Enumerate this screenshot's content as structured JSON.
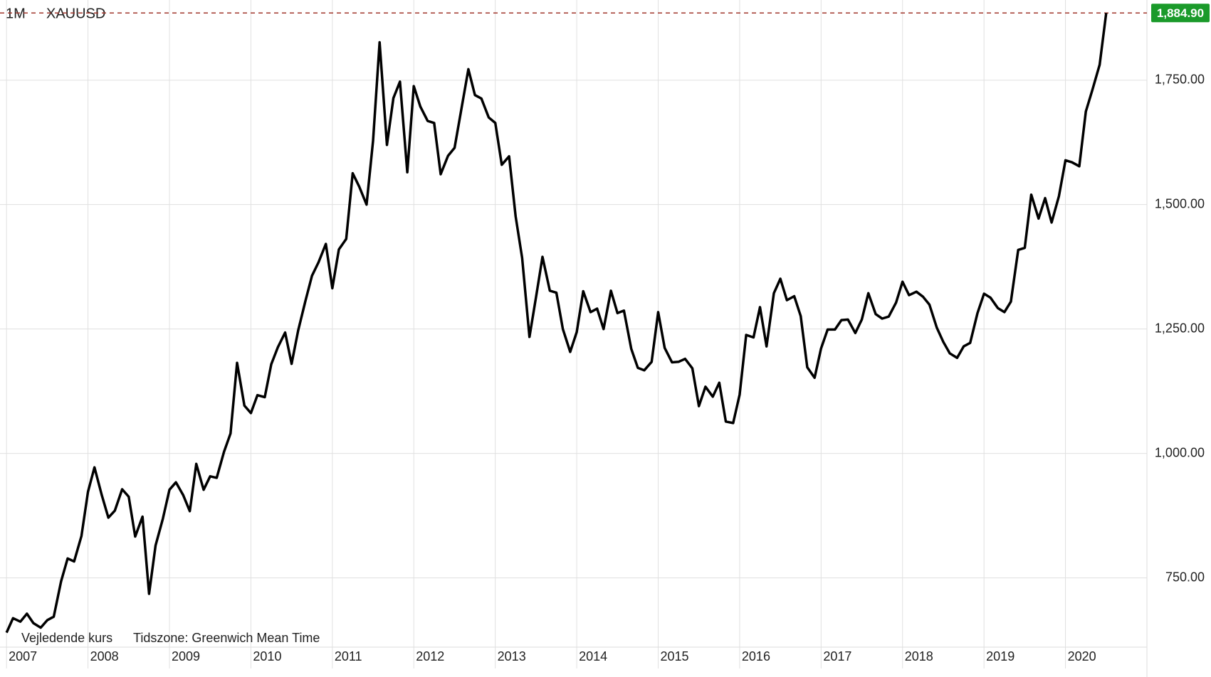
{
  "chart_data": {
    "type": "line",
    "interval": "1M",
    "title": "XAUUSD",
    "notes": [
      "Vejledende kurs",
      "Tidszone: Greenwich Mean Time"
    ],
    "last_price": {
      "value": 1884.9,
      "label": "1,884.90"
    },
    "color": "#000000",
    "grid": true,
    "xlim": [
      2006.92,
      2021.0
    ],
    "ylim": [
      568,
      1911
    ],
    "xticks": [
      2007,
      2008,
      2009,
      2010,
      2011,
      2012,
      2013,
      2014,
      2015,
      2016,
      2017,
      2018,
      2019,
      2020
    ],
    "yticks": [
      {
        "value": 750,
        "label": "750.00"
      },
      {
        "value": 1000,
        "label": "1,000.00"
      },
      {
        "value": 1250,
        "label": "1,250.00"
      },
      {
        "value": 1500,
        "label": "1,500.00"
      },
      {
        "value": 1750,
        "label": "1,750.00"
      }
    ],
    "x": [
      2007,
      2007.08,
      2007.17,
      2007.25,
      2007.33,
      2007.42,
      2007.5,
      2007.58,
      2007.67,
      2007.75,
      2007.83,
      2007.92,
      2008,
      2008.08,
      2008.17,
      2008.25,
      2008.33,
      2008.42,
      2008.5,
      2008.58,
      2008.67,
      2008.75,
      2008.83,
      2008.92,
      2009,
      2009.08,
      2009.17,
      2009.25,
      2009.33,
      2009.42,
      2009.5,
      2009.58,
      2009.67,
      2009.75,
      2009.83,
      2009.92,
      2010,
      2010.08,
      2010.17,
      2010.25,
      2010.33,
      2010.42,
      2010.5,
      2010.58,
      2010.67,
      2010.75,
      2010.83,
      2010.92,
      2011,
      2011.08,
      2011.17,
      2011.25,
      2011.33,
      2011.42,
      2011.5,
      2011.58,
      2011.67,
      2011.75,
      2011.83,
      2011.92,
      2012,
      2012.08,
      2012.17,
      2012.25,
      2012.33,
      2012.42,
      2012.5,
      2012.58,
      2012.67,
      2012.75,
      2012.83,
      2012.92,
      2013,
      2013.08,
      2013.17,
      2013.25,
      2013.33,
      2013.42,
      2013.5,
      2013.58,
      2013.67,
      2013.75,
      2013.83,
      2013.92,
      2014,
      2014.08,
      2014.17,
      2014.25,
      2014.33,
      2014.42,
      2014.5,
      2014.58,
      2014.67,
      2014.75,
      2014.83,
      2014.92,
      2015,
      2015.08,
      2015.17,
      2015.25,
      2015.33,
      2015.42,
      2015.5,
      2015.58,
      2015.67,
      2015.75,
      2015.83,
      2015.92,
      2016,
      2016.08,
      2016.17,
      2016.25,
      2016.33,
      2016.42,
      2016.5,
      2016.58,
      2016.67,
      2016.75,
      2016.83,
      2016.92,
      2017,
      2017.08,
      2017.17,
      2017.25,
      2017.33,
      2017.42,
      2017.5,
      2017.58,
      2017.67,
      2017.75,
      2017.83,
      2017.92,
      2018,
      2018.08,
      2018.17,
      2018.25,
      2018.33,
      2018.42,
      2018.5,
      2018.58,
      2018.67,
      2018.75,
      2018.83,
      2018.92,
      2019,
      2019.08,
      2019.17,
      2019.25,
      2019.33,
      2019.42,
      2019.5,
      2019.58,
      2019.67,
      2019.75,
      2019.83,
      2019.92,
      2020,
      2020.08,
      2020.17,
      2020.25,
      2020.33,
      2020.42,
      2020.5
    ],
    "values": [
      640,
      669,
      662,
      678,
      659,
      650,
      665,
      672,
      743,
      789,
      783,
      834,
      923,
      972,
      916,
      871,
      885,
      928,
      913,
      833,
      873,
      718,
      815,
      869,
      927,
      942,
      916,
      884,
      979,
      927,
      954,
      951,
      1003,
      1040,
      1182,
      1096,
      1081,
      1117,
      1113,
      1179,
      1213,
      1243,
      1180,
      1247,
      1307,
      1357,
      1384,
      1421,
      1332,
      1410,
      1431,
      1563,
      1536,
      1500,
      1628,
      1826,
      1620,
      1714,
      1747,
      1565,
      1738,
      1697,
      1668,
      1664,
      1561,
      1598,
      1614,
      1688,
      1772,
      1720,
      1713,
      1675,
      1664,
      1580,
      1597,
      1476,
      1393,
      1234,
      1314,
      1395,
      1327,
      1323,
      1250,
      1204,
      1244,
      1326,
      1284,
      1291,
      1250,
      1327,
      1282,
      1287,
      1210,
      1172,
      1167,
      1184,
      1284,
      1212,
      1183,
      1184,
      1190,
      1171,
      1095,
      1134,
      1114,
      1142,
      1064,
      1061,
      1118,
      1238,
      1233,
      1294,
      1215,
      1322,
      1351,
      1308,
      1316,
      1276,
      1173,
      1152,
      1211,
      1249,
      1249,
      1268,
      1269,
      1242,
      1269,
      1322,
      1280,
      1271,
      1275,
      1303,
      1345,
      1318,
      1325,
      1315,
      1299,
      1253,
      1224,
      1201,
      1192,
      1215,
      1222,
      1282,
      1321,
      1313,
      1292,
      1284,
      1305,
      1409,
      1413,
      1520,
      1472,
      1513,
      1464,
      1517,
      1589,
      1585,
      1577,
      1687,
      1730,
      1781,
      1884.9
    ]
  }
}
